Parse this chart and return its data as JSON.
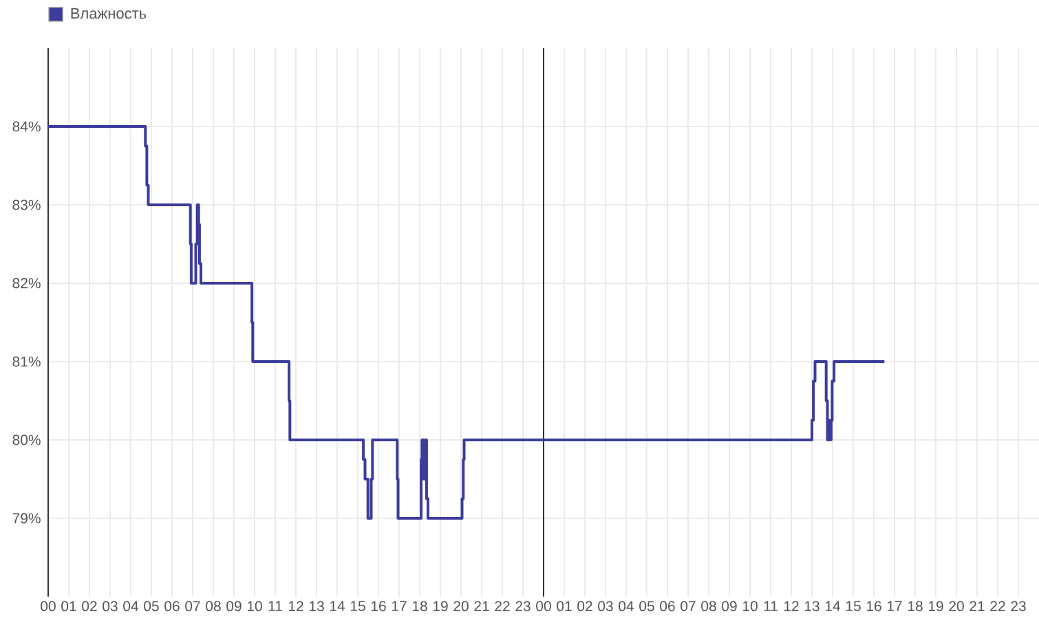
{
  "chart_data": {
    "type": "step",
    "x": [
      0,
      4.71,
      4.78,
      4.85,
      6.89,
      6.93,
      7.15,
      7.22,
      7.29,
      7.33,
      7.4,
      9.87,
      9.91,
      11.67,
      11.71,
      15.27,
      15.35,
      15.49,
      15.65,
      15.71,
      16.91,
      16.95,
      18.07,
      18.11,
      18.2,
      18.27,
      18.33,
      18.4,
      20.05,
      20.11,
      20.15,
      37.0,
      37.07,
      37.15,
      37.69,
      37.75,
      37.82,
      37.89,
      37.93,
      37.98,
      38.07,
      40.51
    ],
    "series": [
      {
        "name": "Влажность",
        "color": "#3c3c9c",
        "values": [
          84,
          83.75,
          83.25,
          83,
          82.5,
          82,
          82.5,
          83,
          82.75,
          82.25,
          82,
          81.5,
          81,
          80.5,
          80,
          79.75,
          79.5,
          79,
          79.5,
          80,
          79.5,
          79,
          79.75,
          80,
          79.5,
          80,
          79.25,
          79,
          79.25,
          79.75,
          80,
          80.25,
          80.75,
          81,
          80.5,
          80,
          80.25,
          80,
          80.25,
          80.75,
          81,
          81
        ]
      }
    ],
    "xlim": [
      0,
      48
    ],
    "ylim": [
      78,
      85
    ],
    "xticks": [
      {
        "value": 0,
        "label": "00"
      },
      {
        "value": 1,
        "label": "01"
      },
      {
        "value": 2,
        "label": "02"
      },
      {
        "value": 3,
        "label": "03"
      },
      {
        "value": 4,
        "label": "04"
      },
      {
        "value": 5,
        "label": "05"
      },
      {
        "value": 6,
        "label": "06"
      },
      {
        "value": 7,
        "label": "07"
      },
      {
        "value": 8,
        "label": "08"
      },
      {
        "value": 9,
        "label": "09"
      },
      {
        "value": 10,
        "label": "10"
      },
      {
        "value": 11,
        "label": "11"
      },
      {
        "value": 12,
        "label": "12"
      },
      {
        "value": 13,
        "label": "13"
      },
      {
        "value": 14,
        "label": "14"
      },
      {
        "value": 15,
        "label": "15"
      },
      {
        "value": 16,
        "label": "16"
      },
      {
        "value": 17,
        "label": "17"
      },
      {
        "value": 18,
        "label": "18"
      },
      {
        "value": 19,
        "label": "19"
      },
      {
        "value": 20,
        "label": "20"
      },
      {
        "value": 21,
        "label": "21"
      },
      {
        "value": 22,
        "label": "22"
      },
      {
        "value": 23,
        "label": "23"
      },
      {
        "value": 24,
        "label": "00"
      },
      {
        "value": 25,
        "label": "01"
      },
      {
        "value": 26,
        "label": "02"
      },
      {
        "value": 27,
        "label": "03"
      },
      {
        "value": 28,
        "label": "04"
      },
      {
        "value": 29,
        "label": "05"
      },
      {
        "value": 30,
        "label": "06"
      },
      {
        "value": 31,
        "label": "07"
      },
      {
        "value": 32,
        "label": "08"
      },
      {
        "value": 33,
        "label": "09"
      },
      {
        "value": 34,
        "label": "10"
      },
      {
        "value": 35,
        "label": "11"
      },
      {
        "value": 36,
        "label": "12"
      },
      {
        "value": 37,
        "label": "13"
      },
      {
        "value": 38,
        "label": "14"
      },
      {
        "value": 39,
        "label": "15"
      },
      {
        "value": 40,
        "label": "16"
      },
      {
        "value": 41,
        "label": "17"
      },
      {
        "value": 42,
        "label": "18"
      },
      {
        "value": 43,
        "label": "19"
      },
      {
        "value": 44,
        "label": "20"
      },
      {
        "value": 45,
        "label": "21"
      },
      {
        "value": 46,
        "label": "22"
      },
      {
        "value": 47,
        "label": "23"
      }
    ],
    "yticks": [
      {
        "value": 79,
        "label": "79%"
      },
      {
        "value": 80,
        "label": "80%"
      },
      {
        "value": 81,
        "label": "81%"
      },
      {
        "value": 82,
        "label": "82%"
      },
      {
        "value": 83,
        "label": "83%"
      },
      {
        "value": 84,
        "label": "84%"
      }
    ],
    "ref_lines": [
      {
        "axis": "x",
        "value": 24,
        "color": "#333333"
      }
    ],
    "grid": true,
    "legend": "top left"
  }
}
